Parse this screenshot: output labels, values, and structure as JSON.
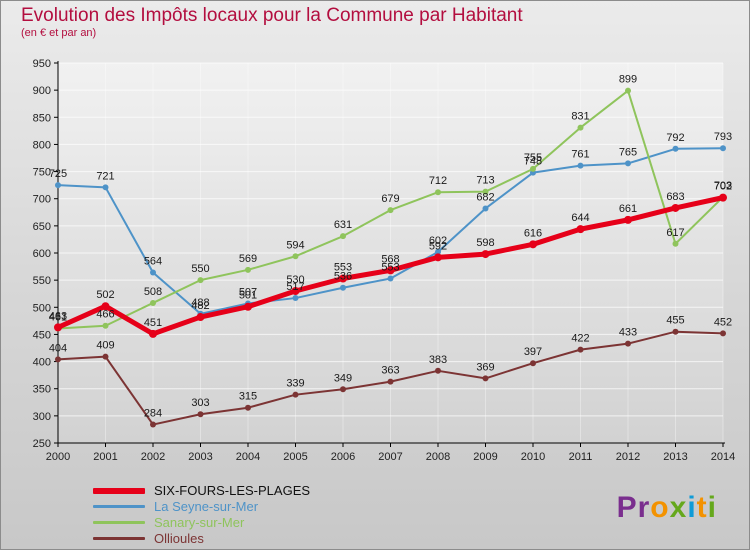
{
  "title": "Evolution des Impôts locaux pour la Commune par Habitant",
  "subtitle": "(en € et par an)",
  "colors": {
    "title": "#b30e3f",
    "axis": "#000000",
    "tick_label": "#222222",
    "data_label": "#1a1a1a",
    "legend_first": "#111111",
    "grid": "#ffffff",
    "plot_bg_top": "#f1f1f1",
    "plot_bg_bottom": "#d2d2d2",
    "frame_border": "#8c8c8c"
  },
  "chart_data": {
    "type": "line",
    "title": "Evolution des Impôts locaux pour la Commune par Habitant",
    "subtitle": "(en € et par an)",
    "x": [
      2000,
      2001,
      2002,
      2003,
      2004,
      2005,
      2006,
      2007,
      2008,
      2009,
      2010,
      2011,
      2012,
      2013,
      2014
    ],
    "xlabel": "",
    "ylabel": "",
    "ylim": [
      250,
      950
    ],
    "ytick_step": 50,
    "grid": true,
    "legend_position": "bottom-left",
    "series": [
      {
        "name": "SIX-FOURS-LES-PLAGES",
        "color": "#e60019",
        "line_width": 5,
        "values": [
          463,
          502,
          451,
          482,
          501,
          530,
          553,
          568,
          592,
          598,
          616,
          644,
          661,
          683,
          702
        ]
      },
      {
        "name": "La Seyne-sur-Mer",
        "color": "#4e93c8",
        "line_width": 2,
        "values": [
          725,
          721,
          564,
          488,
          507,
          517,
          536,
          553,
          602,
          682,
          748,
          761,
          765,
          792,
          793
        ]
      },
      {
        "name": "Sanary-sur-Mer",
        "color": "#8fc45c",
        "line_width": 2,
        "values": [
          461,
          466,
          508,
          550,
          569,
          594,
          631,
          679,
          712,
          713,
          755,
          831,
          899,
          617,
          703
        ]
      },
      {
        "name": "Ollioules",
        "color": "#7c3434",
        "line_width": 2,
        "values": [
          404,
          409,
          284,
          303,
          315,
          339,
          349,
          363,
          383,
          369,
          397,
          422,
          433,
          455,
          452
        ]
      }
    ]
  },
  "logo": {
    "text": "Proxiti",
    "letters": [
      {
        "ch": "P",
        "color": "#7a2e8e"
      },
      {
        "ch": "r",
        "color": "#7a2e8e"
      },
      {
        "ch": "o",
        "color": "#f39200"
      },
      {
        "ch": "x",
        "color": "#65a81c"
      },
      {
        "ch": "i",
        "color": "#0f9bd7"
      },
      {
        "ch": "t",
        "color": "#f39200"
      },
      {
        "ch": "i",
        "color": "#65a81c"
      }
    ]
  }
}
